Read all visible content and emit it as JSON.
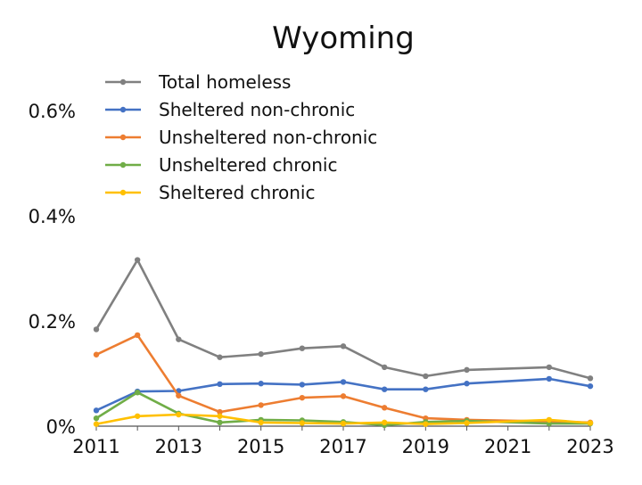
{
  "chart_data": {
    "type": "line",
    "title": "Wyoming",
    "xlabel": "",
    "ylabel": "",
    "x": [
      2011,
      2012,
      2013,
      2014,
      2015,
      2016,
      2017,
      2018,
      2019,
      2020,
      2022,
      2023
    ],
    "xlim": [
      2011,
      2023
    ],
    "xticks": [
      "2011",
      "2013",
      "2015",
      "2017",
      "2019",
      "2021",
      "2023"
    ],
    "xtick_values": [
      2011,
      2013,
      2015,
      2017,
      2019,
      2021,
      2023
    ],
    "ylim": [
      0,
      0.6
    ],
    "yticks": [
      "0%",
      "0.2%",
      "0.4%",
      "0.6%"
    ],
    "ytick_values": [
      0,
      0.2,
      0.4,
      0.6
    ],
    "grid": false,
    "legend_position": "top-left",
    "series": [
      {
        "name": "Total homeless",
        "color": "#808080",
        "values": [
          0.184,
          0.316,
          0.165,
          0.131,
          0.137,
          0.148,
          0.152,
          0.112,
          0.095,
          0.107,
          0.112,
          0.091
        ]
      },
      {
        "name": "Sheltered non-chronic",
        "color": "#4472C4",
        "values": [
          0.03,
          0.066,
          0.067,
          0.08,
          0.081,
          0.079,
          0.084,
          0.07,
          0.07,
          0.081,
          0.09,
          0.076
        ]
      },
      {
        "name": "Unsheltered non-chronic",
        "color": "#ED7D31",
        "values": [
          0.136,
          0.173,
          0.058,
          0.027,
          0.04,
          0.054,
          0.057,
          0.035,
          0.015,
          0.012,
          0.009,
          0.007
        ]
      },
      {
        "name": "Unsheltered chronic",
        "color": "#70AD47",
        "values": [
          0.015,
          0.064,
          0.024,
          0.007,
          0.012,
          0.011,
          0.008,
          0.002,
          0.008,
          0.01,
          0.005,
          0.005
        ]
      },
      {
        "name": "Sheltered chronic",
        "color": "#FFC000",
        "values": [
          0.004,
          0.019,
          0.022,
          0.019,
          0.007,
          0.006,
          0.005,
          0.007,
          0.004,
          0.006,
          0.012,
          0.006
        ]
      }
    ]
  }
}
